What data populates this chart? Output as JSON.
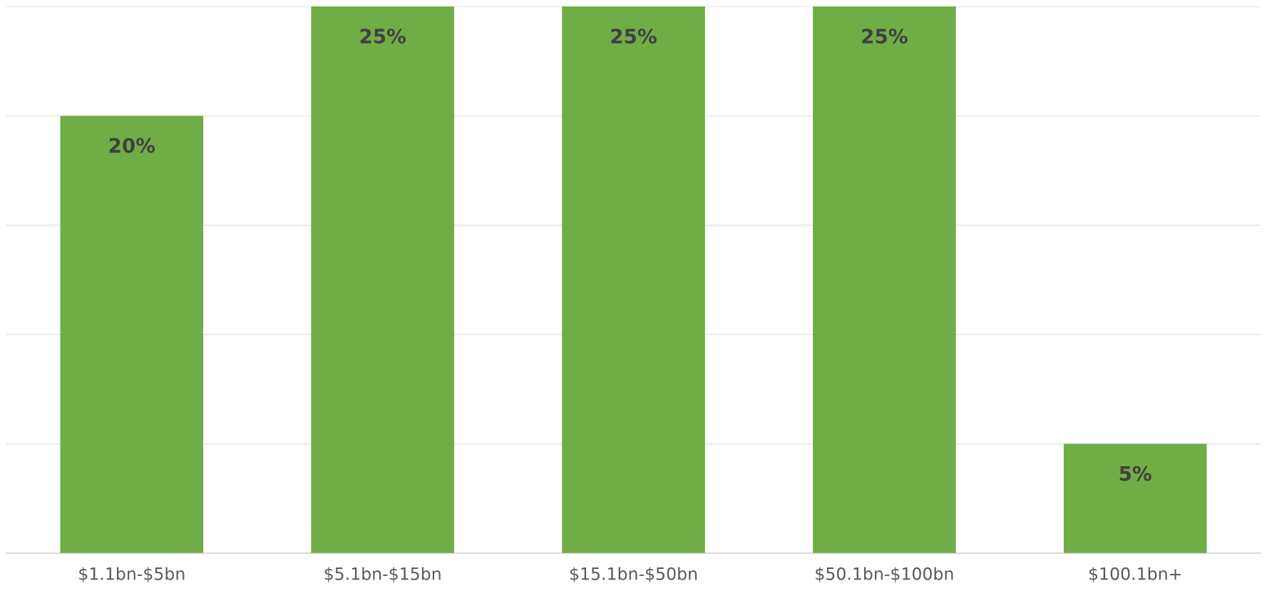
{
  "chart_data": {
    "type": "bar",
    "categories": [
      "$1.1bn-$5bn",
      "$5.1bn-$15bn",
      "$15.1bn-$50bn",
      "$50.1bn-$100bn",
      "$100.1bn+"
    ],
    "values": [
      20,
      25,
      25,
      25,
      5
    ],
    "color": "#70ad47",
    "value_labels": [
      "20%",
      "25%",
      "25%",
      "25%",
      "5%"
    ],
    "ylim": [
      0,
      25
    ],
    "yticks": [
      {
        "value": 0,
        "label": null
      },
      {
        "value": 5,
        "label": null
      },
      {
        "value": 10,
        "label": null
      },
      {
        "value": 15,
        "label": null
      },
      {
        "value": 20,
        "label": null
      },
      {
        "value": 25,
        "label": null
      }
    ],
    "grid": "y",
    "tick_labels": "x"
  }
}
